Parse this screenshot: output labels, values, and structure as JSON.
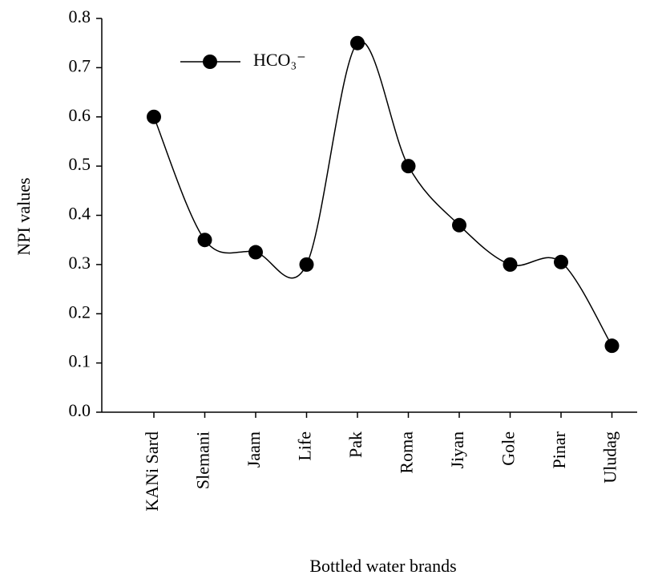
{
  "chart_data": {
    "type": "line",
    "ylabel": "NPI values",
    "xlabel": "Bottled water brands",
    "categories": [
      "KANi Sard",
      "Slemani",
      "Jaam",
      "Life",
      "Pak",
      "Roma",
      "Jiyan",
      "Gole",
      "Pinar",
      "Uludag"
    ],
    "series": [
      {
        "name": "HCO₃⁻",
        "color": "#000000",
        "values": [
          0.6,
          0.35,
          0.325,
          0.3,
          0.75,
          0.5,
          0.38,
          0.3,
          0.305,
          0.135
        ]
      }
    ],
    "ylim": [
      0,
      0.8
    ],
    "yticks": [
      {
        "value": 0,
        "label": "0.0"
      },
      0.1,
      0.2,
      0.3,
      0.4,
      0.5,
      0.6,
      0.7,
      0.8
    ],
    "smooth": true,
    "legend": "upper left"
  }
}
